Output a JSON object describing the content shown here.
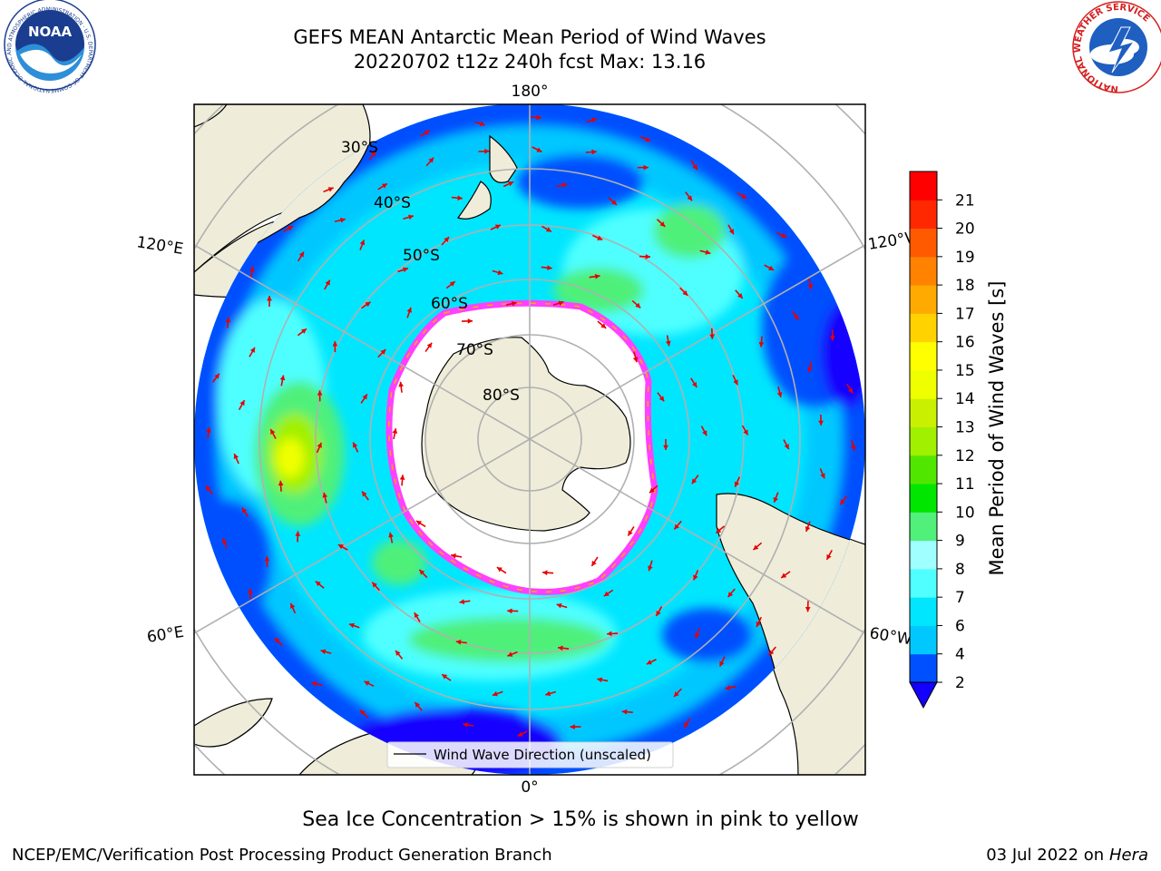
{
  "title_line1": "GEFS MEAN Antarctic Mean Period of Wind Waves",
  "title_line2": "20220702 t12z 240h fcst   Max: 13.16",
  "logos": {
    "noaa_text": "NOAA",
    "noaa_ring": "NATIONAL OCEANIC AND ATMOSPHERIC ADMINISTRATION · U.S. DEPARTMENT OF COMMERCE",
    "nws_ring": "NATIONAL WEATHER SERVICE"
  },
  "map": {
    "projection": "south polar stereographic",
    "lon_labels": {
      "top": "180°",
      "bottom": "0°",
      "upper_left": "120°E",
      "lower_left": "60°E",
      "upper_right": "120°W",
      "lower_right": "60°W"
    },
    "lat_labels": [
      "30°S",
      "40°S",
      "50°S",
      "60°S",
      "70°S",
      "80°S"
    ],
    "legend_label": "Wind Wave Direction (unscaled)"
  },
  "colorbar": {
    "label": "Mean Period of Wind Waves [s]",
    "ticks": [
      "2",
      "4",
      "6",
      "7",
      "8",
      "9",
      "10",
      "11",
      "12",
      "13",
      "14",
      "15",
      "16",
      "17",
      "18",
      "19",
      "20",
      "21"
    ],
    "colors": [
      "#0050ff",
      "#00c8ff",
      "#00e6ff",
      "#50ffff",
      "#a0ffff",
      "#50f07a",
      "#00e600",
      "#50e600",
      "#a0f000",
      "#c8f000",
      "#f0ff00",
      "#ffff00",
      "#ffd200",
      "#ffaa00",
      "#ff8200",
      "#ff5a00",
      "#ff2800",
      "#ff0000"
    ],
    "extend_color": "#1400ff"
  },
  "caption": "Sea Ice Concentration > 15% is shown in pink to yellow",
  "footer_left": "NCEP/EMC/Verification Post Processing Product Generation Branch",
  "footer_right_prefix": "03 Jul 2022 on ",
  "footer_right_host": "Hera"
}
